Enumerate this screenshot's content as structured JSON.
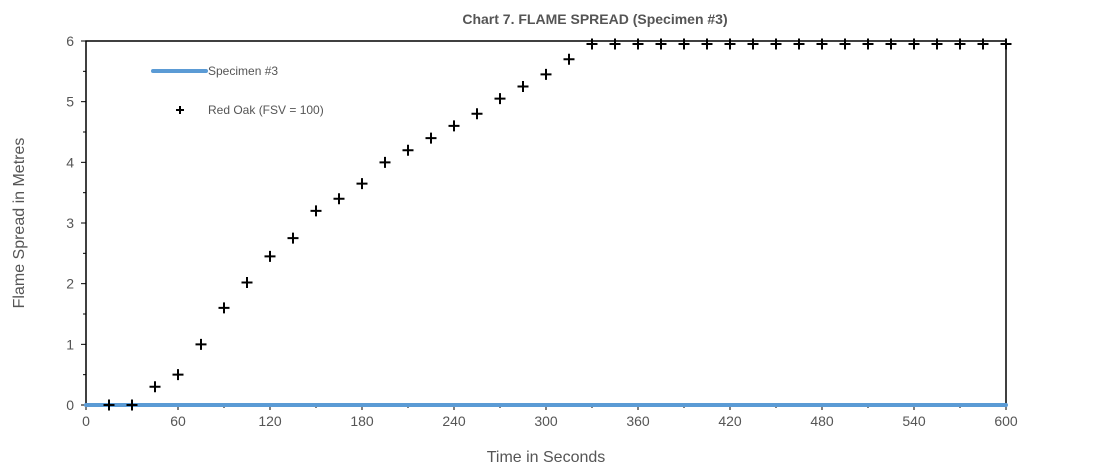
{
  "chart_data": {
    "type": "line",
    "title": "Chart 7. FLAME SPREAD (Specimen #3)",
    "xlabel": "Time in Seconds",
    "ylabel": "Flame Spread in Metres",
    "xlim": [
      0,
      600
    ],
    "ylim": [
      0,
      6
    ],
    "xticks": [
      "0",
      "60",
      "120",
      "180",
      "240",
      "300",
      "360",
      "420",
      "480",
      "540",
      "600"
    ],
    "yticks": [
      "0",
      "1",
      "2",
      "3",
      "4",
      "5",
      "6"
    ],
    "grid": false,
    "legend_position": "top-left",
    "series": [
      {
        "name": "Specimen #3",
        "style": "line",
        "color": "#5b9bd5",
        "x": [
          0,
          600
        ],
        "y": [
          0,
          0
        ]
      },
      {
        "name": "Red Oak (FSV = 100)",
        "style": "markers",
        "marker": "plus",
        "color": "#000000",
        "x": [
          15,
          30,
          45,
          60,
          75,
          90,
          105,
          120,
          135,
          150,
          165,
          180,
          195,
          210,
          225,
          240,
          255,
          270,
          285,
          300,
          315,
          330,
          345,
          360,
          375,
          390,
          405,
          420,
          435,
          450,
          465,
          480,
          495,
          510,
          525,
          540,
          555,
          570,
          585,
          600
        ],
        "y": [
          0,
          0,
          0.3,
          0.5,
          1.0,
          1.6,
          2.02,
          2.45,
          2.75,
          3.2,
          3.4,
          3.65,
          4.0,
          4.2,
          4.4,
          4.6,
          4.8,
          5.05,
          5.25,
          5.45,
          5.7,
          5.95,
          5.95,
          5.95,
          5.95,
          5.95,
          5.95,
          5.95,
          5.95,
          5.95,
          5.95,
          5.95,
          5.95,
          5.95,
          5.95,
          5.95,
          5.95,
          5.95,
          5.95,
          5.95
        ]
      }
    ]
  }
}
